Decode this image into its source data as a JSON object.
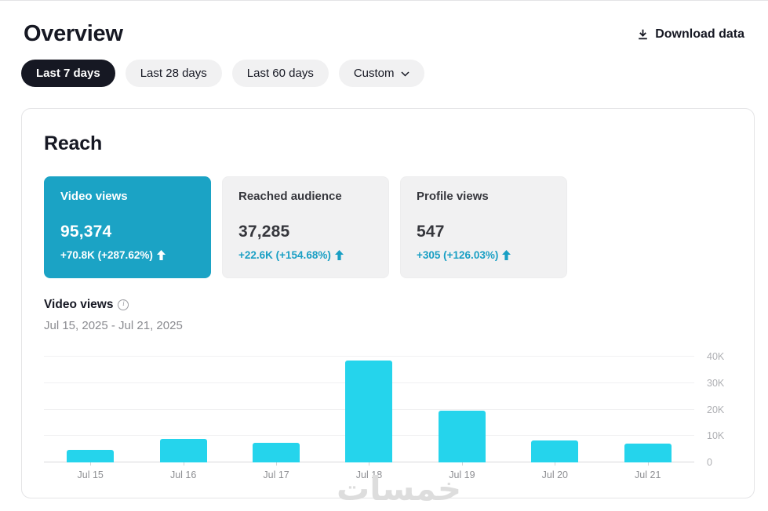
{
  "header": {
    "title": "Overview",
    "download_label": "Download data"
  },
  "filters": [
    {
      "label": "Last 7 days",
      "selected": true
    },
    {
      "label": "Last 28 days",
      "selected": false
    },
    {
      "label": "Last 60 days",
      "selected": false
    },
    {
      "label": "Custom",
      "selected": false,
      "has_dropdown": true
    }
  ],
  "reach": {
    "title": "Reach",
    "metrics": [
      {
        "label": "Video views",
        "value": "95,374",
        "delta": "+70.8K (+287.62%)",
        "selected": true
      },
      {
        "label": "Reached audience",
        "value": "37,285",
        "delta": "+22.6K (+154.68%)",
        "selected": false
      },
      {
        "label": "Profile views",
        "value": "547",
        "delta": "+305 (+126.03%)",
        "selected": false
      }
    ],
    "chart_title": "Video views",
    "date_range": "Jul 15, 2025 - Jul 21, 2025"
  },
  "chart_data": {
    "type": "bar",
    "title": "Video views",
    "categories": [
      "Jul 15",
      "Jul 16",
      "Jul 17",
      "Jul 18",
      "Jul 19",
      "Jul 20",
      "Jul 21"
    ],
    "values": [
      4600,
      8800,
      7300,
      38500,
      19700,
      8400,
      7000
    ],
    "xlabel": "",
    "ylabel": "",
    "ylim": [
      0,
      40000
    ],
    "yticks": [
      {
        "value": 0,
        "label": "0"
      },
      {
        "value": 10000,
        "label": "10K"
      },
      {
        "value": 20000,
        "label": "20K"
      },
      {
        "value": 30000,
        "label": "30K"
      },
      {
        "value": 40000,
        "label": "40K"
      }
    ],
    "y_axis_position": "right",
    "grid": "horizontal",
    "bar_color": "#25d4ec",
    "legend": "none"
  },
  "icons": {
    "download": "download-icon",
    "chevron_down": "chevron-down-icon",
    "info": "info-icon",
    "increase": "up-arrow-icon"
  },
  "colors": {
    "accent_selected_card": "#1ba3c5",
    "bar": "#25d4ec",
    "delta_text": "#199fc4",
    "pill_selected_bg": "#161823",
    "neutral_card_bg": "#f1f1f2",
    "text_primary": "#161823",
    "text_secondary": "#8a8b90"
  },
  "watermark": {
    "text": "خمسات"
  }
}
